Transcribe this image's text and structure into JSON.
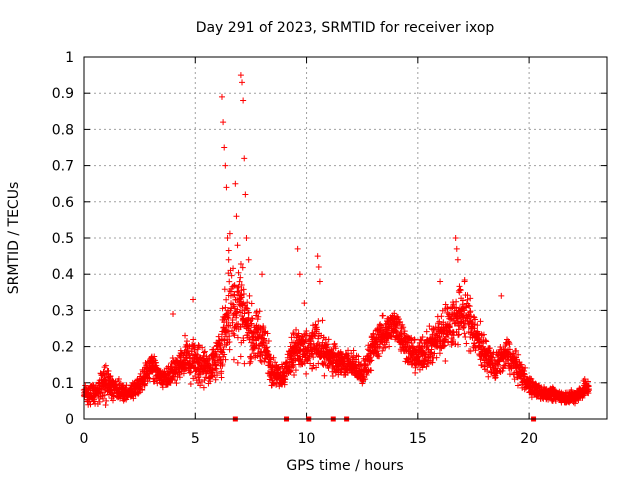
{
  "chart_data": {
    "type": "scatter",
    "title": "Day 291 of 2023, SRMTID for receiver ixop",
    "xlabel": "GPS time / hours",
    "ylabel": "SRMTID / TECUs",
    "xlim": [
      0,
      23.5
    ],
    "ylim": [
      0,
      1
    ],
    "x_ticks": [
      0,
      5,
      10,
      15,
      20
    ],
    "x_tick_labels": [
      "0",
      "5",
      "10",
      "15",
      "20"
    ],
    "y_ticks": [
      0,
      0.1,
      0.2,
      0.3,
      0.4,
      0.5,
      0.6,
      0.7,
      0.8,
      0.9,
      1
    ],
    "y_tick_labels": [
      "0",
      "0.1",
      "0.2",
      "0.3",
      "0.4",
      "0.5",
      "0.6",
      "0.7",
      "0.8",
      "0.9",
      "1"
    ],
    "grid": true,
    "marker": "plus",
    "series_color": "#ff0000",
    "baseline_markers_x": [
      6.8,
      9.1,
      10.1,
      11.2,
      11.8,
      20.2
    ],
    "profile_hours": [
      0,
      0.5,
      1,
      1.5,
      2,
      2.5,
      3,
      3.5,
      4,
      4.5,
      5,
      5.5,
      6,
      6.3,
      6.6,
      6.8,
      7,
      7.3,
      7.6,
      8,
      8.5,
      9,
      9.5,
      10,
      10.5,
      11,
      11.5,
      12,
      12.5,
      13,
      13.5,
      14,
      14.5,
      15,
      15.5,
      16,
      16.5,
      17,
      17.5,
      18,
      18.5,
      19,
      19.5,
      20,
      20.5,
      21,
      21.5,
      22,
      22.7
    ],
    "profile_mean": [
      0.07,
      0.07,
      0.1,
      0.08,
      0.07,
      0.09,
      0.15,
      0.11,
      0.13,
      0.17,
      0.16,
      0.14,
      0.16,
      0.24,
      0.34,
      0.3,
      0.33,
      0.26,
      0.23,
      0.22,
      0.13,
      0.12,
      0.2,
      0.18,
      0.21,
      0.17,
      0.16,
      0.15,
      0.12,
      0.2,
      0.24,
      0.26,
      0.2,
      0.17,
      0.2,
      0.23,
      0.26,
      0.3,
      0.25,
      0.18,
      0.14,
      0.18,
      0.14,
      0.09,
      0.07,
      0.07,
      0.06,
      0.06,
      0.09
    ],
    "profile_spread": [
      0.03,
      0.03,
      0.05,
      0.03,
      0.02,
      0.03,
      0.04,
      0.03,
      0.04,
      0.06,
      0.07,
      0.05,
      0.06,
      0.1,
      0.2,
      0.13,
      0.2,
      0.1,
      0.08,
      0.08,
      0.04,
      0.04,
      0.06,
      0.06,
      0.08,
      0.05,
      0.04,
      0.04,
      0.04,
      0.05,
      0.05,
      0.05,
      0.05,
      0.05,
      0.06,
      0.07,
      0.08,
      0.09,
      0.07,
      0.05,
      0.04,
      0.05,
      0.04,
      0.03,
      0.02,
      0.02,
      0.02,
      0.02,
      0.03
    ],
    "peak_points": [
      {
        "x": 6.2,
        "y": 0.89
      },
      {
        "x": 6.25,
        "y": 0.82
      },
      {
        "x": 6.3,
        "y": 0.75
      },
      {
        "x": 6.35,
        "y": 0.7
      },
      {
        "x": 6.4,
        "y": 0.64
      },
      {
        "x": 6.45,
        "y": 0.5
      },
      {
        "x": 6.5,
        "y": 0.44
      },
      {
        "x": 6.8,
        "y": 0.65
      },
      {
        "x": 6.85,
        "y": 0.56
      },
      {
        "x": 6.9,
        "y": 0.48
      },
      {
        "x": 7.05,
        "y": 0.95
      },
      {
        "x": 7.1,
        "y": 0.93
      },
      {
        "x": 7.15,
        "y": 0.88
      },
      {
        "x": 7.2,
        "y": 0.72
      },
      {
        "x": 7.25,
        "y": 0.62
      },
      {
        "x": 7.3,
        "y": 0.5
      },
      {
        "x": 7.4,
        "y": 0.44
      },
      {
        "x": 8.0,
        "y": 0.4
      },
      {
        "x": 4.9,
        "y": 0.33
      },
      {
        "x": 4.0,
        "y": 0.29
      },
      {
        "x": 9.6,
        "y": 0.47
      },
      {
        "x": 9.7,
        "y": 0.4
      },
      {
        "x": 9.9,
        "y": 0.32
      },
      {
        "x": 10.5,
        "y": 0.45
      },
      {
        "x": 10.55,
        "y": 0.42
      },
      {
        "x": 10.6,
        "y": 0.38
      },
      {
        "x": 16.7,
        "y": 0.5
      },
      {
        "x": 16.75,
        "y": 0.47
      },
      {
        "x": 16.8,
        "y": 0.44
      },
      {
        "x": 16.0,
        "y": 0.38
      },
      {
        "x": 17.1,
        "y": 0.38
      },
      {
        "x": 18.75,
        "y": 0.34
      },
      {
        "x": 22.5,
        "y": 0.11
      }
    ]
  }
}
